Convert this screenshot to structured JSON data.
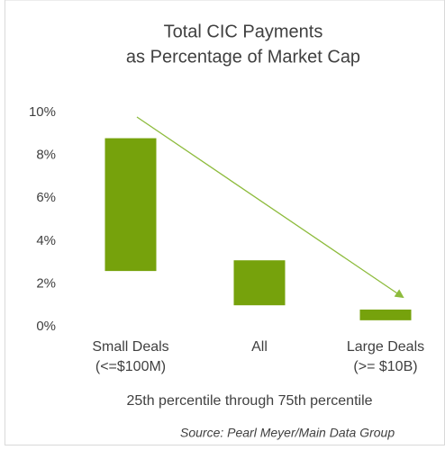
{
  "chart_data": {
    "type": "range-bar",
    "title": [
      "Total CIC Payments",
      "as Percentage of Market Cap"
    ],
    "categories": [
      [
        "Small Deals",
        "(<=$100M)"
      ],
      [
        "All"
      ],
      [
        "Large Deals",
        "(>= $10B)"
      ]
    ],
    "low": [
      2.6,
      1.0,
      0.3
    ],
    "high": [
      8.8,
      3.1,
      0.8
    ],
    "color": "#76a20c",
    "ylim": [
      0,
      10
    ],
    "yticks": [
      {
        "value": 0,
        "label": "0%"
      },
      {
        "value": 2,
        "label": "2%"
      },
      {
        "value": 4,
        "label": "4%"
      },
      {
        "value": 6,
        "label": "6%"
      },
      {
        "value": 8,
        "label": "8%"
      },
      {
        "value": 10,
        "label": "10%"
      }
    ],
    "xlabel": "25th percentile through 75th percentile",
    "source": "Source: Pearl Meyer/Main Data Group",
    "grid": false
  }
}
